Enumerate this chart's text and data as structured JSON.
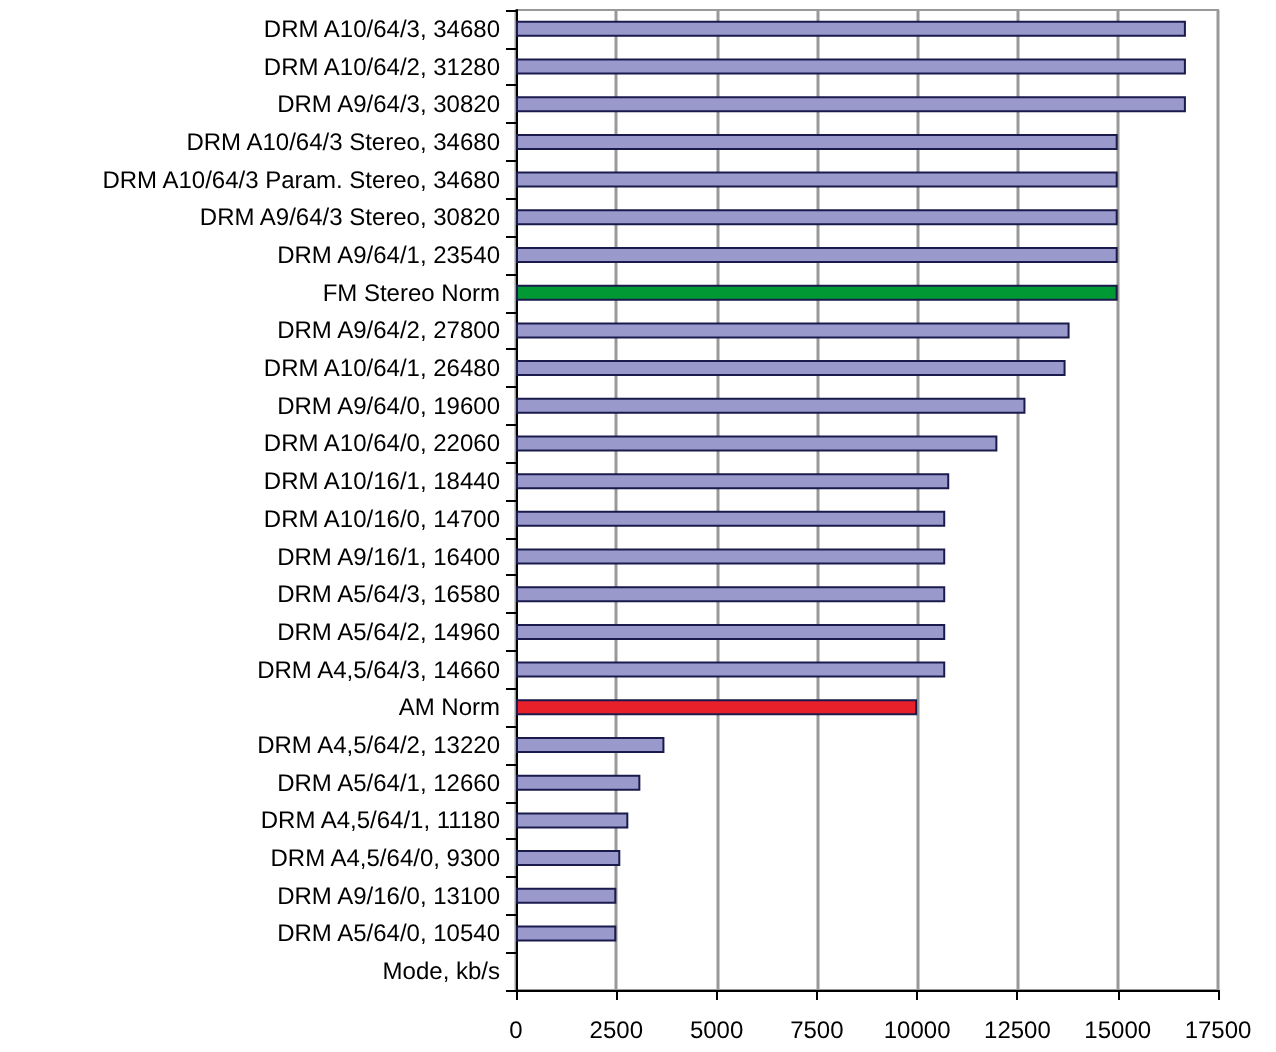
{
  "chart_data": {
    "type": "bar",
    "orientation": "horizontal",
    "categories": [
      "DRM A10/64/3, 34680",
      "DRM A10/64/2, 31280",
      "DRM A9/64/3, 30820",
      "DRM A10/64/3 Stereo, 34680",
      "DRM A10/64/3 Param. Stereo, 34680",
      "DRM A9/64/3 Stereo, 30820",
      "DRM A9/64/1, 23540",
      "FM Stereo Norm",
      "DRM A9/64/2, 27800",
      "DRM A10/64/1, 26480",
      "DRM A9/64/0, 19600",
      "DRM A10/64/0, 22060",
      "DRM A10/16/1, 18440",
      "DRM A10/16/0, 14700",
      "DRM A9/16/1, 16400",
      "DRM A5/64/3, 16580",
      "DRM A5/64/2, 14960",
      "DRM A4,5/64/3, 14660",
      "AM Norm",
      "DRM A4,5/64/2, 13220",
      "DRM A5/64/1, 12660",
      "DRM A4,5/64/1, 11180",
      "DRM A4,5/64/0, 9300",
      "DRM A9/16/0, 13100",
      "DRM A5/64/0, 10540",
      "Mode, kb/s"
    ],
    "values": [
      16700,
      16700,
      16700,
      15000,
      15000,
      15000,
      15000,
      15000,
      13800,
      13700,
      12700,
      12000,
      10800,
      10700,
      10700,
      10700,
      10700,
      10700,
      10000,
      3700,
      3100,
      2800,
      2600,
      2500,
      2500,
      null
    ],
    "colors": [
      "#9999cc",
      "#9999cc",
      "#9999cc",
      "#9999cc",
      "#9999cc",
      "#9999cc",
      "#9999cc",
      "#009933",
      "#9999cc",
      "#9999cc",
      "#9999cc",
      "#9999cc",
      "#9999cc",
      "#9999cc",
      "#9999cc",
      "#9999cc",
      "#9999cc",
      "#9999cc",
      "#e8202a",
      "#9999cc",
      "#9999cc",
      "#9999cc",
      "#9999cc",
      "#9999cc",
      "#9999cc",
      "#9999cc"
    ],
    "xlim": [
      0,
      17500
    ],
    "xticks": [
      0,
      2500,
      5000,
      7500,
      10000,
      12500,
      15000,
      17500
    ],
    "grid": "x"
  }
}
